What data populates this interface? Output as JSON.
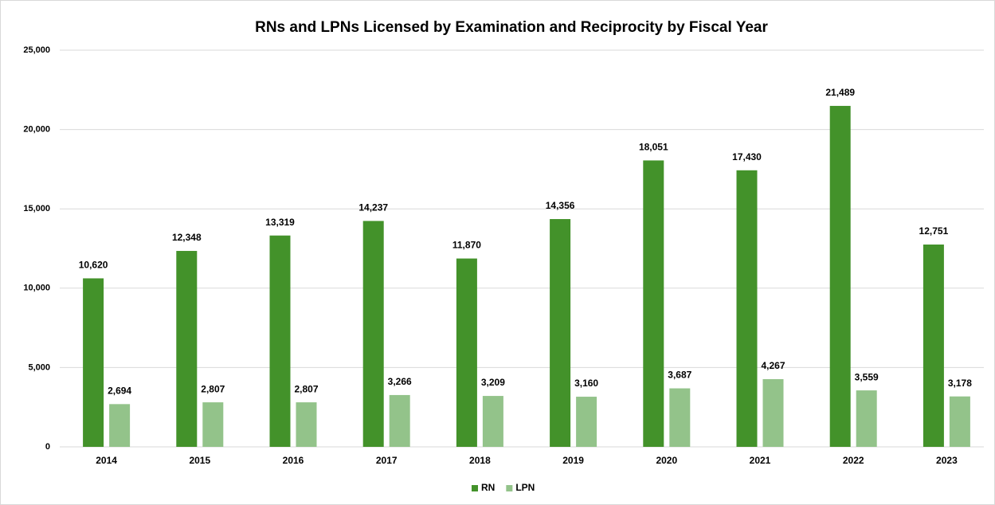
{
  "chart_data": {
    "type": "bar",
    "title": "RNs and LPNs Licensed by Examination and Reciprocity by Fiscal Year",
    "categories": [
      "2014",
      "2015",
      "2016",
      "2017",
      "2018",
      "2019",
      "2020",
      "2021",
      "2022",
      "2023"
    ],
    "series": [
      {
        "name": "RN",
        "color": "#43922a",
        "values": [
          10620,
          12348,
          13319,
          14237,
          11870,
          14356,
          18051,
          17430,
          21489,
          12751
        ],
        "value_labels": [
          "10,620",
          "12,348",
          "13,319",
          "14,237",
          "11,870",
          "14,356",
          "18,051",
          "17,430",
          "21,489",
          "12,751"
        ]
      },
      {
        "name": "LPN",
        "color": "#93c38a",
        "values": [
          2694,
          2807,
          2807,
          3266,
          3209,
          3160,
          3687,
          4267,
          3559,
          3178
        ],
        "value_labels": [
          "2,694",
          "2,807",
          "2,807",
          "3,266",
          "3,209",
          "3,160",
          "3,687",
          "4,267",
          "3,559",
          "3,178"
        ]
      }
    ],
    "ylim": [
      0,
      25000
    ],
    "yticks": [
      0,
      {
        "value": 5000,
        "label": "5,000"
      },
      {
        "value": 10000,
        "label": "10,000"
      },
      {
        "value": 15000,
        "label": "15,000"
      },
      {
        "value": 20000,
        "label": "20,000"
      },
      {
        "value": 25000,
        "label": "25,000"
      }
    ],
    "grid": true,
    "legend": "bottom"
  }
}
